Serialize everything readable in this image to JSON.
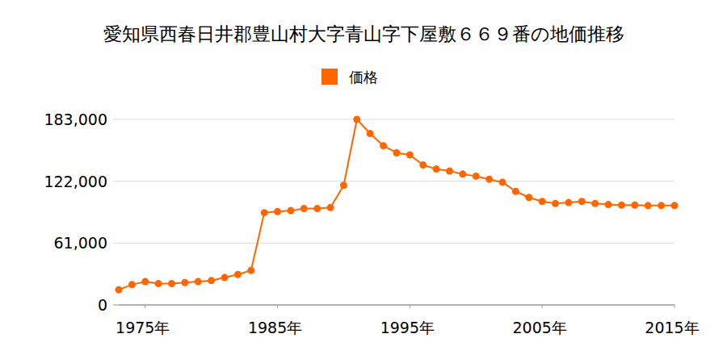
{
  "chart_data": {
    "type": "line",
    "title": "愛知県西春日井郡豊山村大字青山字下屋敷６６９番の地価推移",
    "x": [
      1973,
      1974,
      1975,
      1976,
      1977,
      1978,
      1979,
      1980,
      1981,
      1982,
      1983,
      1984,
      1985,
      1986,
      1987,
      1988,
      1989,
      1990,
      1991,
      1992,
      1993,
      1994,
      1995,
      1996,
      1997,
      1998,
      1999,
      2000,
      2001,
      2002,
      2003,
      2004,
      2005,
      2006,
      2007,
      2008,
      2009,
      2010,
      2011,
      2012,
      2013,
      2014,
      2015
    ],
    "series": [
      {
        "name": "価格",
        "color": "#ff6600",
        "marker": "circle",
        "values": [
          15000,
          20000,
          23000,
          21000,
          21000,
          22000,
          23000,
          24000,
          27000,
          30000,
          34000,
          91000,
          92000,
          93000,
          95000,
          95000,
          96000,
          118000,
          183000,
          169000,
          157000,
          150000,
          148000,
          138000,
          134000,
          132000,
          129000,
          127000,
          124000,
          121000,
          112000,
          106000,
          102000,
          100000,
          101000,
          102000,
          100000,
          99000,
          98500,
          98500,
          98000,
          98000,
          98000
        ]
      }
    ],
    "xlim": [
      1973,
      2015
    ],
    "xticks": [
      {
        "value": 1975,
        "label": "1975年"
      },
      {
        "value": 1985,
        "label": "1985年"
      },
      {
        "value": 1995,
        "label": "1995年"
      },
      {
        "value": 2005,
        "label": "2005年"
      },
      {
        "value": 2015,
        "label": "2015年"
      }
    ],
    "ylim": [
      0,
      183000
    ],
    "yticks": [
      0,
      {
        "value": 61000,
        "label": "61,000"
      },
      {
        "value": 122000,
        "label": "122,000"
      },
      {
        "value": 183000,
        "label": "183,000"
      }
    ],
    "grid": true,
    "legend": "top"
  }
}
